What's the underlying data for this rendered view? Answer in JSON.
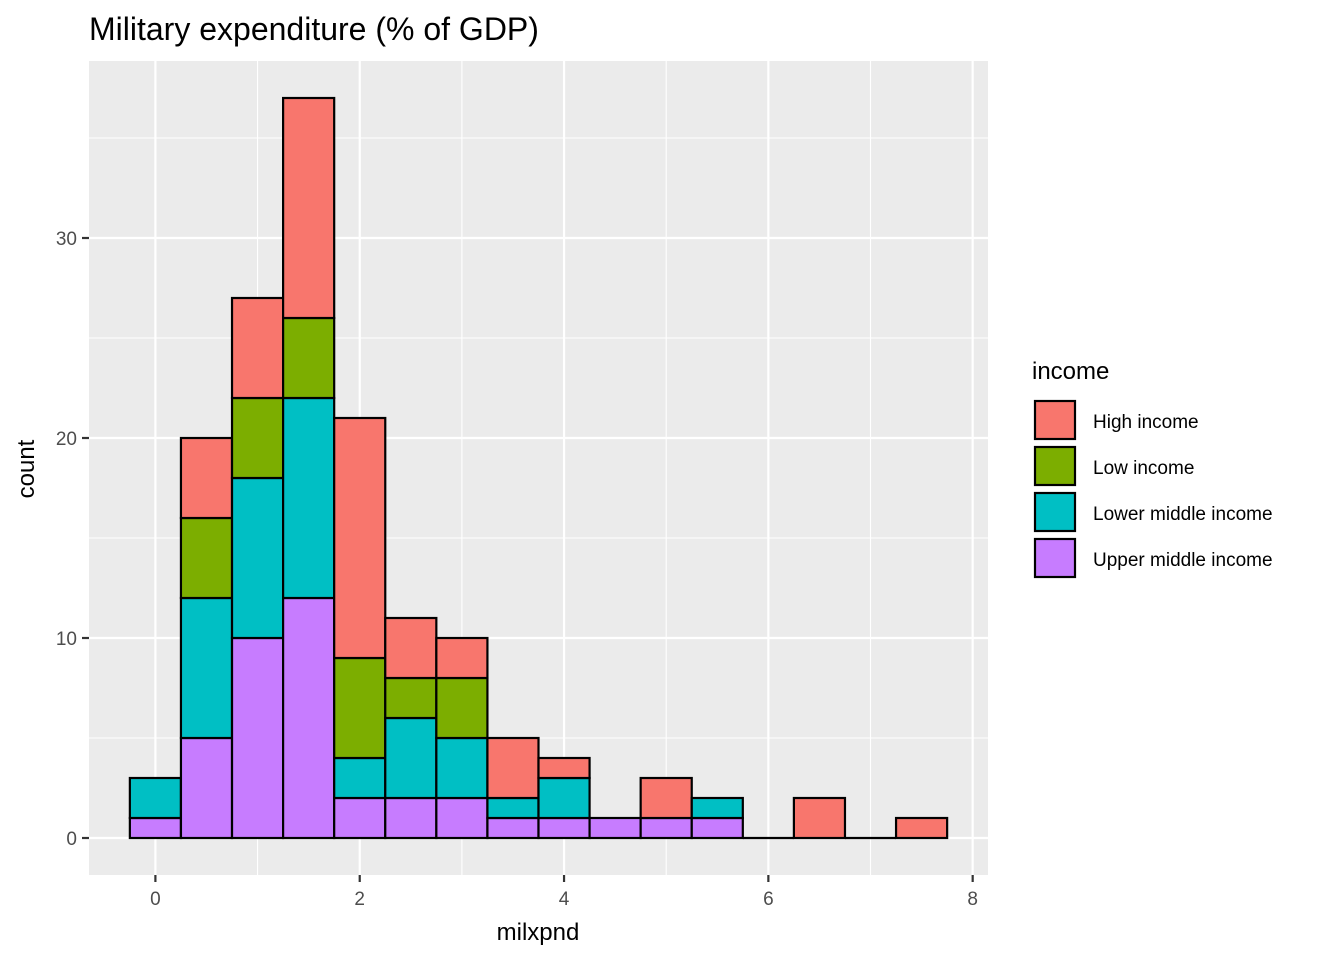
{
  "chart_data": {
    "type": "bar",
    "stacked": true,
    "title": "Military expenditure (% of GDP)",
    "xlabel": "milxpnd",
    "ylabel": "count",
    "xlim": [
      -0.65,
      8.15
    ],
    "ylim": [
      -1.85,
      38.85
    ],
    "xticks": [
      0,
      2,
      4,
      6,
      8
    ],
    "yticks": [
      0,
      10,
      20,
      30
    ],
    "bin_width": 0.5,
    "bin_centers": [
      0,
      0.5,
      1,
      1.5,
      2,
      2.5,
      3,
      3.5,
      4,
      4.5,
      5,
      5.5,
      6,
      6.5,
      7,
      7.5
    ],
    "series": [
      {
        "name": "Upper middle income",
        "color": "#C77CFF",
        "values": [
          1,
          5,
          10,
          12,
          2,
          2,
          2,
          1,
          1,
          1,
          1,
          1,
          0,
          0,
          0,
          0
        ]
      },
      {
        "name": "Lower middle income",
        "color": "#00BFC4",
        "values": [
          2,
          7,
          8,
          10,
          2,
          4,
          3,
          1,
          2,
          0,
          0,
          1,
          0,
          0,
          0,
          0
        ]
      },
      {
        "name": "Low income",
        "color": "#7CAE00",
        "values": [
          0,
          4,
          4,
          4,
          5,
          2,
          3,
          0,
          0,
          0,
          0,
          0,
          0,
          0,
          0,
          0
        ]
      },
      {
        "name": "High income",
        "color": "#F8766D",
        "values": [
          0,
          4,
          5,
          11,
          12,
          3,
          2,
          3,
          1,
          0,
          2,
          0,
          0,
          2,
          0,
          1
        ]
      }
    ],
    "grid": true,
    "panel_background": "#EBEBEB",
    "legend": {
      "title": "income",
      "position": "right",
      "items": [
        "High income",
        "Low income",
        "Lower middle income",
        "Upper middle income"
      ]
    }
  }
}
